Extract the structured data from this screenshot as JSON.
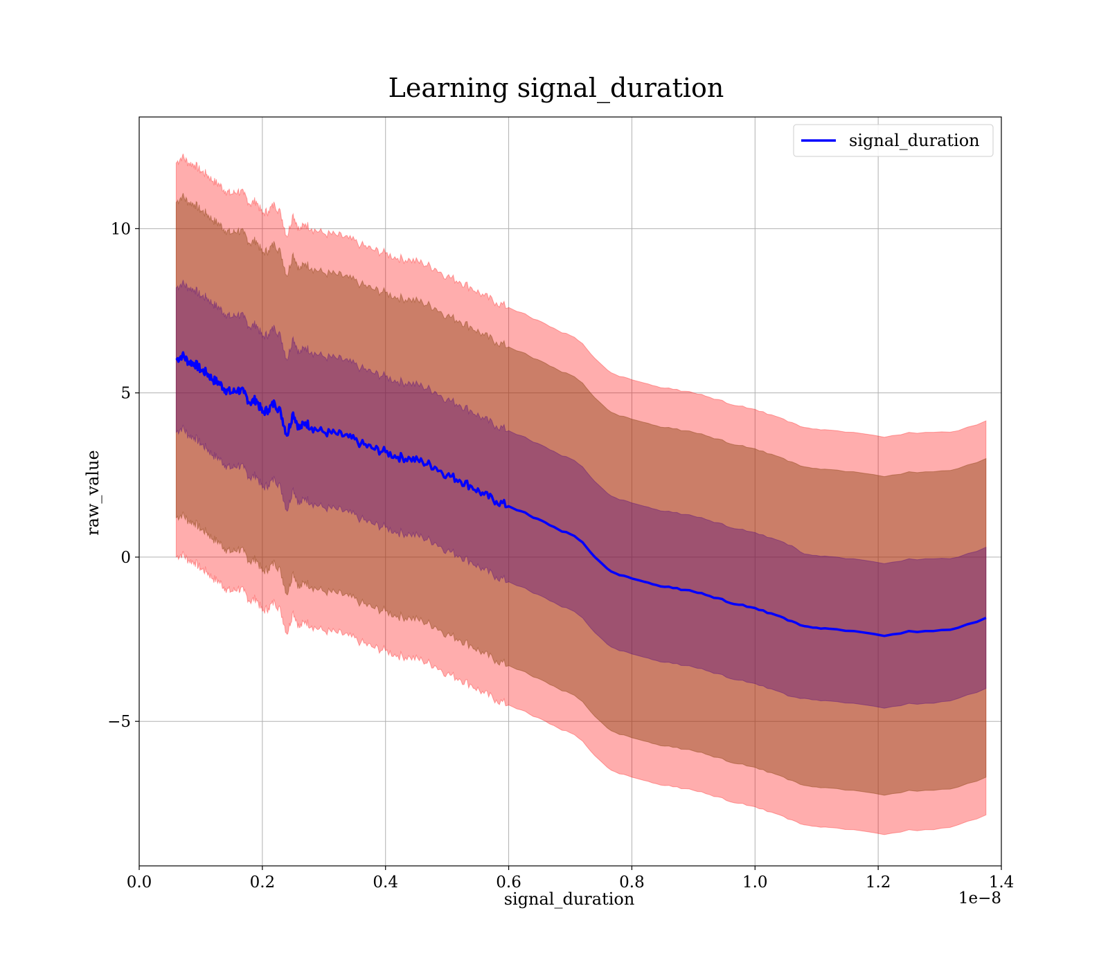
{
  "chart_data": {
    "type": "line",
    "title": "Learning signal_duration",
    "xlabel": "signal_duration",
    "ylabel": "raw_value",
    "x_offset_label": "1e−8",
    "xlim": [
      0.0,
      1.4
    ],
    "ylim": [
      -9.4,
      13.4
    ],
    "x_ticks": [
      0.0,
      0.2,
      0.4,
      0.6,
      0.8,
      1.0,
      1.2,
      1.4
    ],
    "x_tick_labels": [
      "0.0",
      "0.2",
      "0.4",
      "0.6",
      "0.8",
      "1.0",
      "1.2",
      "1.4"
    ],
    "y_ticks": [
      -5,
      0,
      5,
      10
    ],
    "y_tick_labels": [
      "−5",
      "0",
      "5",
      "10"
    ],
    "grid": true,
    "legend_position": "top-right",
    "colors": {
      "line": "#0000ff",
      "band_outer": "#ff0000",
      "band_middle": "#8b4513",
      "band_inner": "#4b0082",
      "grid": "#b0b0b0",
      "axes": "#000000"
    },
    "series": [
      {
        "name": "signal_duration",
        "x": [
          0.06,
          0.07,
          0.08,
          0.09,
          0.1,
          0.11,
          0.12,
          0.13,
          0.14,
          0.15,
          0.16,
          0.17,
          0.18,
          0.19,
          0.2,
          0.21,
          0.22,
          0.23,
          0.24,
          0.25,
          0.26,
          0.27,
          0.28,
          0.3,
          0.32,
          0.34,
          0.36,
          0.38,
          0.4,
          0.42,
          0.44,
          0.46,
          0.48,
          0.5,
          0.52,
          0.54,
          0.56,
          0.58,
          0.6,
          0.62,
          0.64,
          0.66,
          0.68,
          0.7,
          0.72,
          0.74,
          0.76,
          0.78,
          0.8,
          0.82,
          0.84,
          0.86,
          0.88,
          0.9,
          0.92,
          0.94,
          0.96,
          0.98,
          1.0,
          1.02,
          1.04,
          1.06,
          1.08,
          1.1,
          1.12,
          1.16,
          1.21,
          1.25,
          1.29,
          1.33,
          1.375
        ],
        "values": [
          6.0,
          6.15,
          5.95,
          5.9,
          5.7,
          5.6,
          5.4,
          5.3,
          5.1,
          5.0,
          5.1,
          5.0,
          4.7,
          4.8,
          4.4,
          4.5,
          4.7,
          4.4,
          3.7,
          4.4,
          3.9,
          4.1,
          3.95,
          3.8,
          3.75,
          3.65,
          3.45,
          3.3,
          3.2,
          3.05,
          3.0,
          2.9,
          2.75,
          2.5,
          2.35,
          2.15,
          1.9,
          1.7,
          1.55,
          1.4,
          1.2,
          1.05,
          0.85,
          0.7,
          0.45,
          0.0,
          -0.35,
          -0.55,
          -0.65,
          -0.75,
          -0.85,
          -0.9,
          -1.0,
          -1.05,
          -1.15,
          -1.25,
          -1.4,
          -1.45,
          -1.55,
          -1.7,
          -1.8,
          -1.95,
          -2.1,
          -2.15,
          -2.18,
          -2.25,
          -2.4,
          -2.25,
          -2.25,
          -2.15,
          -1.85
        ],
        "band_inner_halfwidth": [
          2.2,
          2.2,
          2.25,
          2.25,
          2.25,
          2.3,
          2.3,
          2.3,
          2.3,
          2.3,
          2.3,
          2.3,
          2.3,
          2.3,
          2.3,
          2.3,
          2.3,
          2.3,
          2.3,
          2.3,
          2.3,
          2.3,
          2.3,
          2.3,
          2.3,
          2.3,
          2.3,
          2.3,
          2.3,
          2.3,
          2.3,
          2.3,
          2.3,
          2.3,
          2.3,
          2.3,
          2.3,
          2.3,
          2.3,
          2.3,
          2.3,
          2.3,
          2.3,
          2.3,
          2.3,
          2.3,
          2.3,
          2.3,
          2.3,
          2.3,
          2.3,
          2.3,
          2.3,
          2.3,
          2.3,
          2.3,
          2.3,
          2.3,
          2.3,
          2.3,
          2.3,
          2.3,
          2.2,
          2.2,
          2.2,
          2.2,
          2.2,
          2.2,
          2.2,
          2.15,
          2.15
        ],
        "band_middle_halfwidth": [
          4.8,
          4.85,
          4.85,
          4.85,
          4.85,
          4.85,
          4.85,
          4.85,
          4.85,
          4.85,
          4.85,
          4.85,
          4.85,
          4.85,
          4.85,
          4.85,
          4.85,
          4.85,
          4.85,
          4.85,
          4.85,
          4.85,
          4.85,
          4.85,
          4.85,
          4.85,
          4.85,
          4.85,
          4.85,
          4.85,
          4.85,
          4.85,
          4.85,
          4.85,
          4.85,
          4.85,
          4.85,
          4.85,
          4.85,
          4.85,
          4.85,
          4.85,
          4.85,
          4.85,
          4.85,
          4.85,
          4.85,
          4.85,
          4.85,
          4.85,
          4.85,
          4.85,
          4.85,
          4.85,
          4.85,
          4.85,
          4.85,
          4.85,
          4.85,
          4.85,
          4.85,
          4.85,
          4.85,
          4.85,
          4.85,
          4.85,
          4.85,
          4.85,
          4.85,
          4.85,
          4.85
        ],
        "band_outer_halfwidth": [
          6.0,
          6.05,
          6.05,
          6.05,
          6.05,
          6.05,
          6.05,
          6.05,
          6.05,
          6.05,
          6.05,
          6.05,
          6.05,
          6.05,
          6.05,
          6.05,
          6.05,
          6.05,
          6.05,
          6.05,
          6.05,
          6.05,
          6.05,
          6.05,
          6.05,
          6.05,
          6.05,
          6.05,
          6.05,
          6.05,
          6.05,
          6.05,
          6.05,
          6.05,
          6.05,
          6.05,
          6.05,
          6.05,
          6.05,
          6.05,
          6.05,
          6.05,
          6.05,
          6.05,
          6.05,
          6.05,
          6.05,
          6.05,
          6.05,
          6.05,
          6.05,
          6.05,
          6.05,
          6.05,
          6.05,
          6.05,
          6.05,
          6.05,
          6.05,
          6.05,
          6.05,
          6.05,
          6.05,
          6.05,
          6.05,
          6.05,
          6.05,
          6.05,
          6.05,
          6.0,
          6.0
        ]
      }
    ]
  }
}
